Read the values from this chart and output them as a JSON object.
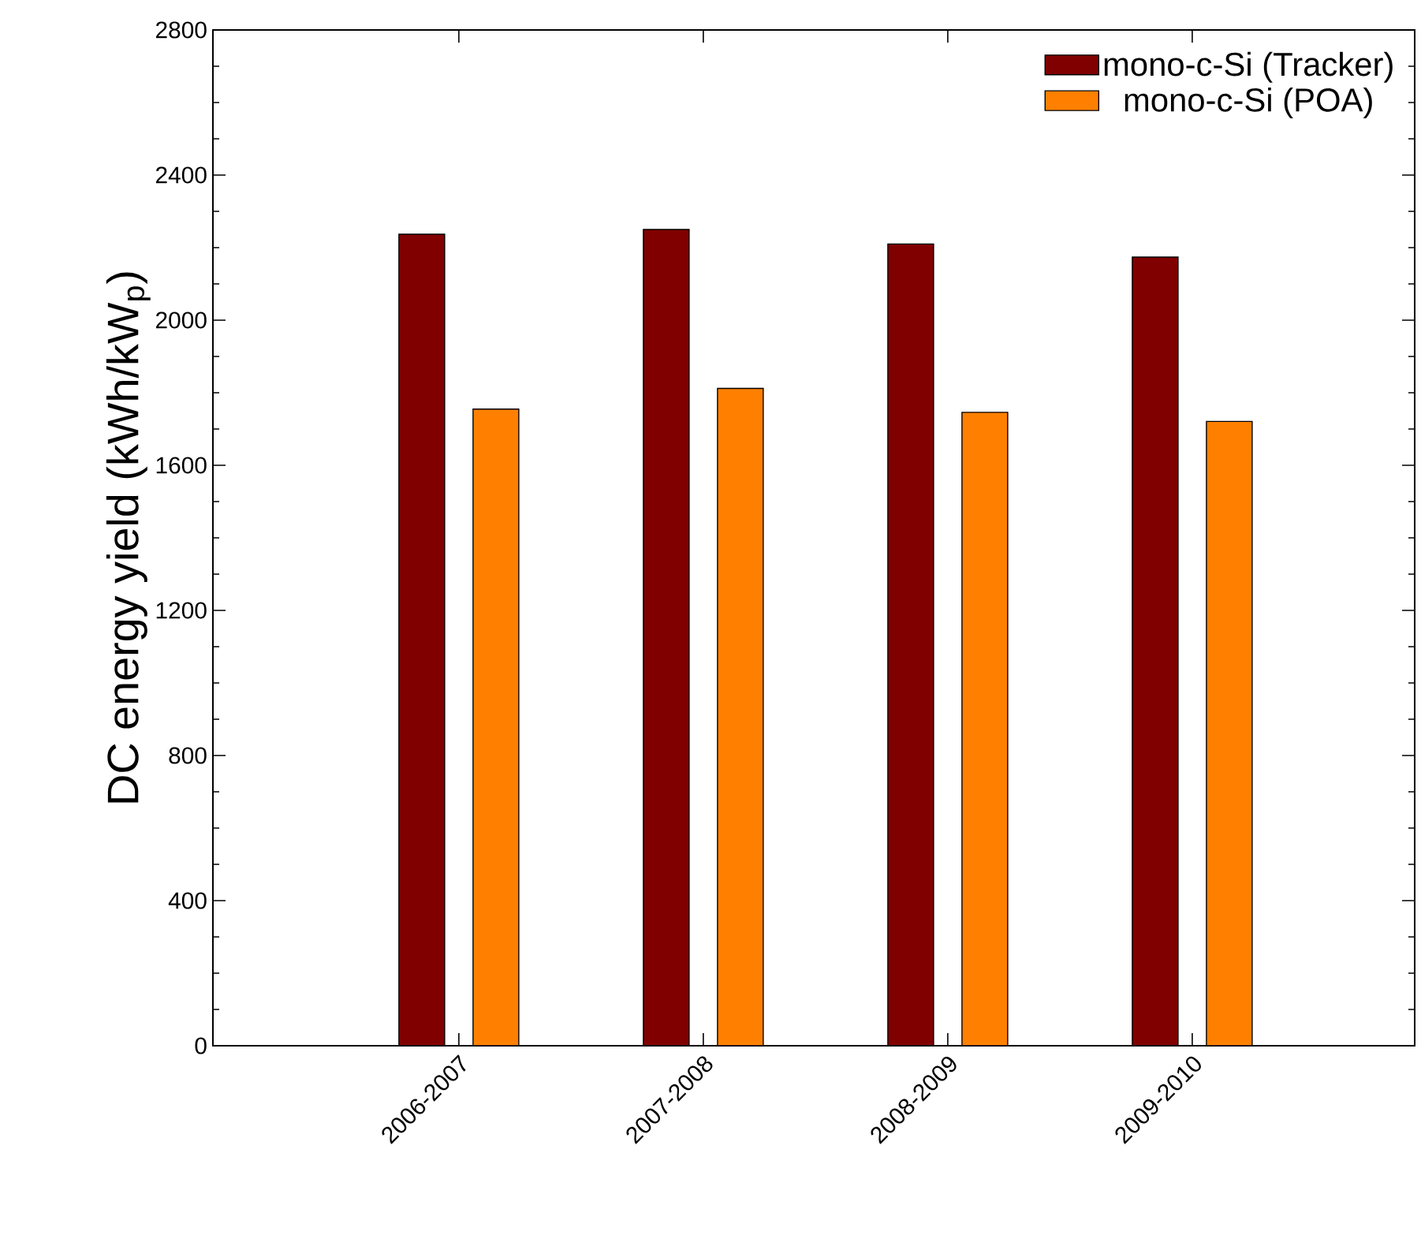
{
  "chart_data": {
    "type": "bar",
    "ylabel": "DC energy yield (kWh/kW$_{p}$)",
    "categories": [
      "2006-2007",
      "2007-2008",
      "2008-2009",
      "2009-2010"
    ],
    "series": [
      {
        "name": "mono-c-Si (Tracker)",
        "color": "#800000",
        "values": [
          2237,
          2250,
          2210,
          2174
        ]
      },
      {
        "name": "mono-c-Si (POA)",
        "color": "#ff8000",
        "values": [
          1755,
          1812,
          1746,
          1721
        ]
      }
    ],
    "ylim": [
      0,
      2800
    ],
    "yticks": [
      0,
      400,
      800,
      1200,
      1600,
      2000,
      2400,
      2800
    ],
    "legend": "top right",
    "grid": false
  }
}
